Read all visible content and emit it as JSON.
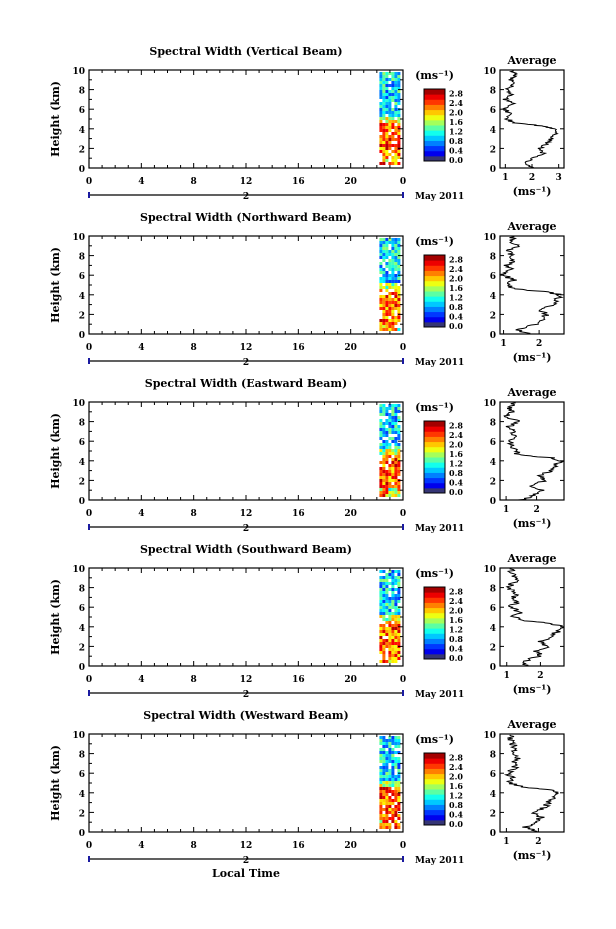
{
  "chart_data": [
    {
      "type": "heatmap",
      "title": "Spectral Width (Vertical Beam)",
      "ylabel": "Height (km)",
      "ylim": [
        0,
        10
      ],
      "xlim": [
        0,
        24
      ],
      "x_ticks": [
        "0",
        "4",
        "8",
        "12",
        "16",
        "20",
        "0"
      ],
      "date_label": "2",
      "month_label": "May 2011",
      "colorbar": {
        "unit": "(ms⁻¹)",
        "ticks": [
          "0.0",
          "0.4",
          "0.8",
          "1.2",
          "1.6",
          "2.0",
          "2.4",
          "2.8"
        ]
      },
      "data_window": {
        "x": [
          22.2,
          23.6
        ]
      },
      "average": {
        "title": "Average",
        "xlabel": "(ms⁻¹)",
        "x_ticks": [
          "1",
          "2",
          "3"
        ],
        "xlim": [
          0.8,
          3.2
        ],
        "ylim": [
          0,
          10
        ],
        "height": [
          0,
          0.5,
          1,
          1.5,
          2,
          2.5,
          3,
          3.5,
          4,
          4.3,
          4.6,
          5,
          5.5,
          6,
          6.5,
          7,
          7.5,
          8,
          8.5,
          9,
          9.5,
          10
        ],
        "values": [
          2.1,
          1.7,
          2.0,
          2.4,
          2.3,
          2.6,
          2.7,
          2.9,
          2.8,
          2.4,
          1.3,
          1.1,
          1.2,
          1.0,
          1.3,
          1.0,
          1.2,
          1.1,
          1.3,
          1.2,
          1.4,
          1.2
        ]
      }
    },
    {
      "type": "heatmap",
      "title": "Spectral Width (Northward Beam)",
      "ylabel": "Height (km)",
      "ylim": [
        0,
        10
      ],
      "xlim": [
        0,
        24
      ],
      "x_ticks": [
        "0",
        "4",
        "8",
        "12",
        "16",
        "20",
        "0"
      ],
      "date_label": "2",
      "month_label": "May 2011",
      "colorbar": {
        "unit": "(ms⁻¹)",
        "ticks": [
          "0.0",
          "0.4",
          "0.8",
          "1.2",
          "1.6",
          "2.0",
          "2.4",
          "2.8"
        ]
      },
      "data_window": {
        "x": [
          22.2,
          23.6
        ]
      },
      "average": {
        "title": "Average",
        "xlabel": "(ms⁻¹)",
        "x_ticks": [
          "1",
          "2"
        ],
        "xlim": [
          0.9,
          2.7
        ],
        "ylim": [
          0,
          10
        ],
        "height": [
          0,
          0.5,
          1,
          1.5,
          2,
          2.5,
          3,
          3.5,
          4,
          4.3,
          4.6,
          5,
          5.5,
          6,
          6.5,
          7,
          7.5,
          8,
          8.5,
          9,
          9.5,
          10
        ],
        "values": [
          1.7,
          1.4,
          1.9,
          2.1,
          2.2,
          2.0,
          2.4,
          2.5,
          2.6,
          2.2,
          1.3,
          1.1,
          1.3,
          1.0,
          1.2,
          1.1,
          1.3,
          1.2,
          1.1,
          1.4,
          1.2,
          1.3
        ]
      }
    },
    {
      "type": "heatmap",
      "title": "Spectral Width (Eastward Beam)",
      "ylabel": "Height (km)",
      "ylim": [
        0,
        10
      ],
      "xlim": [
        0,
        24
      ],
      "x_ticks": [
        "0",
        "4",
        "8",
        "12",
        "16",
        "20",
        "0"
      ],
      "date_label": "2",
      "month_label": "May 2011",
      "colorbar": {
        "unit": "(ms⁻¹)",
        "ticks": [
          "0.0",
          "0.4",
          "0.8",
          "1.2",
          "1.6",
          "2.0",
          "2.4",
          "2.8"
        ]
      },
      "data_window": {
        "x": [
          22.2,
          23.6
        ]
      },
      "average": {
        "title": "Average",
        "xlabel": "(ms⁻¹)",
        "x_ticks": [
          "1",
          "2"
        ],
        "xlim": [
          0.8,
          2.9
        ],
        "ylim": [
          0,
          10
        ],
        "height": [
          0,
          0.5,
          1,
          1.5,
          2,
          2.5,
          3,
          3.5,
          4,
          4.3,
          4.6,
          5,
          5.5,
          6,
          6.5,
          7,
          7.5,
          8,
          8.5,
          9,
          9.5,
          10
        ],
        "values": [
          1.5,
          1.9,
          2.2,
          1.8,
          2.3,
          2.1,
          2.5,
          2.6,
          2.8,
          2.5,
          1.4,
          1.3,
          1.2,
          1.1,
          1.3,
          1.2,
          1.1,
          1.4,
          1.0,
          1.2,
          1.1,
          1.3
        ]
      }
    },
    {
      "type": "heatmap",
      "title": "Spectral Width (Southward Beam)",
      "ylabel": "Height (km)",
      "ylim": [
        0,
        10
      ],
      "xlim": [
        0,
        24
      ],
      "x_ticks": [
        "0",
        "4",
        "8",
        "12",
        "16",
        "20",
        "0"
      ],
      "date_label": "2",
      "month_label": "May 2011",
      "colorbar": {
        "unit": "(ms⁻¹)",
        "ticks": [
          "0.0",
          "0.4",
          "0.8",
          "1.2",
          "1.6",
          "2.0",
          "2.4",
          "2.8"
        ]
      },
      "data_window": {
        "x": [
          22.2,
          23.6
        ]
      },
      "average": {
        "title": "Average",
        "xlabel": "(ms⁻¹)",
        "x_ticks": [
          "1",
          "2"
        ],
        "xlim": [
          0.8,
          2.7
        ],
        "ylim": [
          0,
          10
        ],
        "height": [
          0,
          0.5,
          1,
          1.5,
          2,
          2.5,
          3,
          3.5,
          4,
          4.3,
          4.6,
          5,
          5.5,
          6,
          6.5,
          7,
          7.5,
          8,
          8.5,
          9,
          9.5,
          10
        ],
        "values": [
          1.6,
          1.5,
          2.0,
          1.9,
          2.2,
          2.0,
          2.3,
          2.5,
          2.6,
          2.4,
          1.6,
          1.2,
          1.4,
          1.1,
          1.3,
          1.2,
          1.3,
          1.0,
          1.2,
          1.3,
          1.1,
          1.2
        ]
      }
    },
    {
      "type": "heatmap",
      "title": "Spectral Width (Westward Beam)",
      "ylabel": "Height (km)",
      "xlabel": "Local Time",
      "ylim": [
        0,
        10
      ],
      "xlim": [
        0,
        24
      ],
      "x_ticks": [
        "0",
        "4",
        "8",
        "12",
        "16",
        "20",
        "0"
      ],
      "date_label": "2",
      "month_label": "May 2011",
      "colorbar": {
        "unit": "(ms⁻¹)",
        "ticks": [
          "0.0",
          "0.4",
          "0.8",
          "1.2",
          "1.6",
          "2.0",
          "2.4",
          "2.8"
        ]
      },
      "data_window": {
        "x": [
          22.2,
          23.6
        ]
      },
      "average": {
        "title": "Average",
        "xlabel": "(ms⁻¹)",
        "x_ticks": [
          "1",
          "2"
        ],
        "xlim": [
          0.8,
          2.8
        ],
        "ylim": [
          0,
          10
        ],
        "height": [
          0,
          0.5,
          1,
          1.5,
          2,
          2.5,
          3,
          3.5,
          4,
          4.3,
          4.6,
          5,
          5.5,
          6,
          6.5,
          7,
          7.5,
          8,
          8.5,
          9,
          9.5,
          10
        ],
        "values": [
          2.0,
          1.6,
          1.9,
          2.1,
          1.8,
          2.2,
          2.3,
          2.5,
          2.6,
          2.4,
          1.5,
          1.1,
          1.2,
          1.0,
          1.3,
          1.2,
          1.4,
          1.1,
          1.3,
          1.2,
          1.1,
          1.2
        ]
      }
    }
  ]
}
